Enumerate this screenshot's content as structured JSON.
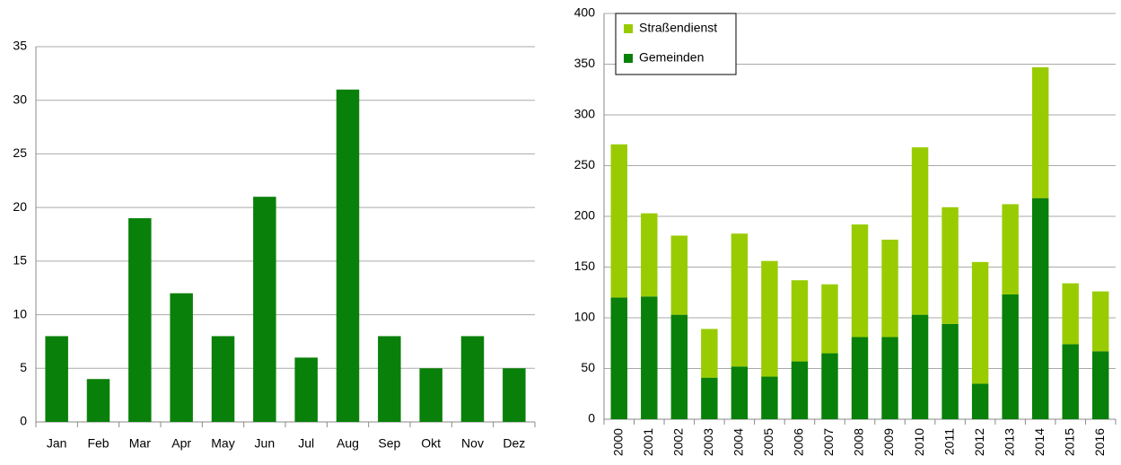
{
  "chart_data": [
    {
      "type": "bar",
      "categories": [
        "Jan",
        "Feb",
        "Mar",
        "Apr",
        "May",
        "Jun",
        "Jul",
        "Aug",
        "Sep",
        "Okt",
        "Nov",
        "Dez"
      ],
      "values": [
        8,
        4,
        19,
        12,
        8,
        21,
        6,
        31,
        8,
        5,
        8,
        5
      ],
      "color": "#098009",
      "ylim": [
        0,
        35
      ],
      "yticks": [
        0,
        5,
        10,
        15,
        20,
        25,
        30,
        35
      ],
      "grid": true
    },
    {
      "type": "stacked_bar",
      "categories": [
        "2000",
        "2001",
        "2002",
        "2003",
        "2004",
        "2005",
        "2006",
        "2007",
        "2008",
        "2009",
        "2010",
        "2011",
        "2012",
        "2013",
        "2014",
        "2015",
        "2016"
      ],
      "series": [
        {
          "name": "Gemeinden",
          "color": "#098009",
          "values": [
            120,
            121,
            103,
            41,
            52,
            42,
            57,
            65,
            81,
            81,
            103,
            94,
            35,
            123,
            218,
            74,
            67
          ]
        },
        {
          "name": "Straßendienst",
          "color": "#99cc00",
          "values": [
            151,
            82,
            78,
            48,
            131,
            114,
            80,
            68,
            111,
            96,
            165,
            115,
            120,
            89,
            129,
            60,
            59
          ]
        }
      ],
      "ylim": [
        0,
        400
      ],
      "yticks": [
        0,
        50,
        100,
        150,
        200,
        250,
        300,
        350,
        400
      ],
      "grid": true,
      "legend": "top-left"
    }
  ]
}
